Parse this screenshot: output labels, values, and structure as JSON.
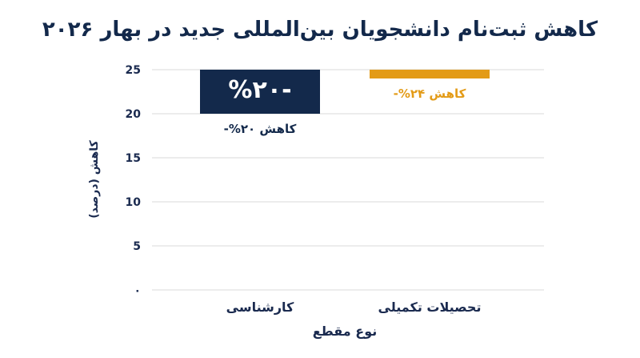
{
  "chart_data": {
    "type": "bar",
    "title": "کاهش ثبت‌نام دانشجویان بین‌المللی جدید در بهار ۲۰۲۶",
    "xlabel": "نوع مقطع",
    "ylabel": "کاهش (درصد)",
    "categories": [
      "کارشناسی",
      "تحصیلات تکمیلی"
    ],
    "values": [
      20,
      24
    ],
    "bar_labels": [
      "-%۲۰",
      "-%۲۴"
    ],
    "annotations": [
      "کاهش ۲۰%-",
      "کاهش ۲۴%-"
    ],
    "colors": [
      "#13294b",
      "#e39b17"
    ],
    "yticks": [
      "۰",
      "5",
      "10",
      "15",
      "20",
      "25"
    ],
    "ylim": [
      0,
      25
    ],
    "y_inverted": true,
    "grid": true
  }
}
